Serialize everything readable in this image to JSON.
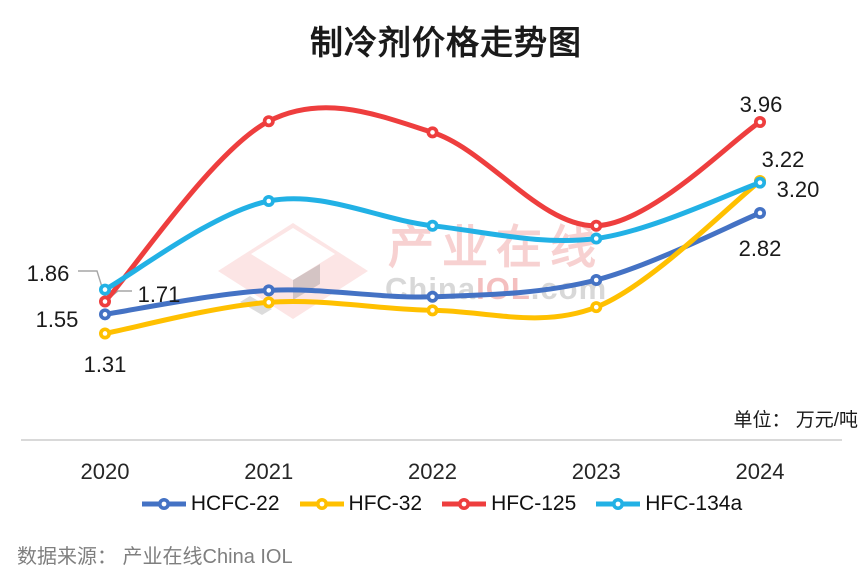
{
  "title": "制冷剂价格走势图",
  "unit_label": "单位： 万元/吨",
  "source": "数据来源： 产业在线China IOL",
  "watermark": {
    "cn": "产业在线",
    "en1": "China",
    "en2": "IOL",
    "en3": ".com"
  },
  "colors": {
    "hcfc22": "#4472c4",
    "hfc32": "#ffc000",
    "hfc125": "#ee3e3e",
    "hfc134a": "#22b1e5",
    "axis": "#d9d9d9",
    "leader": "#a6a6a6",
    "label_text": "#1a1a1a"
  },
  "chart_data": {
    "type": "line",
    "title": "制冷剂价格走势图",
    "unit": "万元/吨",
    "categories": [
      "2020",
      "2021",
      "2022",
      "2023",
      "2024"
    ],
    "series": [
      {
        "name": "HCFC-22",
        "color": "#4472c4",
        "values": [
          1.55,
          1.85,
          1.77,
          1.98,
          2.82
        ]
      },
      {
        "name": "HFC-32",
        "color": "#ffc000",
        "values": [
          1.31,
          1.7,
          1.6,
          1.64,
          3.22
        ]
      },
      {
        "name": "HFC-125",
        "color": "#ee3e3e",
        "values": [
          1.71,
          3.97,
          3.83,
          2.66,
          3.96
        ]
      },
      {
        "name": "HFC-134a",
        "color": "#22b1e5",
        "values": [
          1.86,
          2.97,
          2.66,
          2.5,
          3.2
        ]
      }
    ],
    "data_labels": [
      {
        "series": "HFC-134a",
        "point": 0,
        "text": "1.86"
      },
      {
        "series": "HFC-125",
        "point": 0,
        "text": "1.71"
      },
      {
        "series": "HCFC-22",
        "point": 0,
        "text": "1.55"
      },
      {
        "series": "HFC-32",
        "point": 0,
        "text": "1.31"
      },
      {
        "series": "HFC-125",
        "point": 4,
        "text": "3.96"
      },
      {
        "series": "HFC-32",
        "point": 4,
        "text": "3.22"
      },
      {
        "series": "HFC-134a",
        "point": 4,
        "text": "3.20"
      },
      {
        "series": "HCFC-22",
        "point": 4,
        "text": "2.82"
      }
    ],
    "ylim": [
      1.2,
      4.1
    ],
    "grid": false,
    "legend_position": "bottom",
    "smooth": true,
    "marker": "circle-ring"
  }
}
